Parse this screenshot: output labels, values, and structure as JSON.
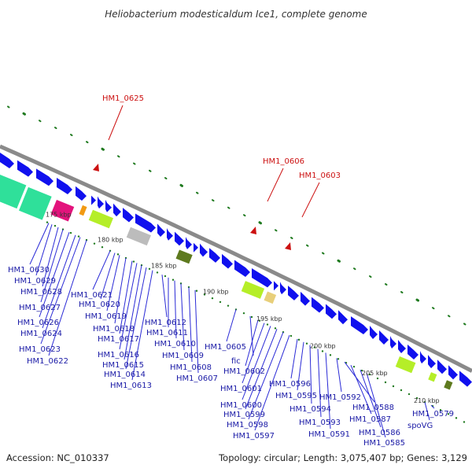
{
  "title": "Heliobacterium modesticaldum Ice1, complete genome",
  "footer": {
    "accession": "Accession: NC_010337",
    "summary": "Topology: circular; Length: 3,075,407 bp; Genes: 3,129"
  },
  "colors": {
    "backbone": "#8a8a8a",
    "gene": "#1010ee",
    "highlight_label": "#cc1111",
    "gene_label": "#1a1aa6",
    "tick_green": "#1f7a1f"
  },
  "tick_labels": [
    "175 kbp",
    "180 kbp",
    "185 kbp",
    "190 kbp",
    "195 kbp",
    "200 kbp",
    "205 kbp",
    "210 kbp"
  ],
  "highlight_genes": [
    "HM1_0625",
    "HM1_0606",
    "HM1_0603"
  ],
  "gene_labels": [
    "HM1_0630",
    "HM1_0629",
    "HM1_0628",
    "HM1_0627",
    "HM1_0626",
    "HM1_0624",
    "HM1_0623",
    "HM1_0622",
    "HM1_0621",
    "HM1_0620",
    "HM1_0619",
    "HM1_0618",
    "HM1_0617",
    "HM1_0616",
    "HM1_0615",
    "HM1_0614",
    "HM1_0613",
    "HM1_0612",
    "HM1_0611",
    "HM1_0610",
    "HM1_0609",
    "HM1_0608",
    "HM1_0607",
    "HM1_0605",
    "fic",
    "HM1_0602",
    "HM1_0601",
    "HM1_0600",
    "HM1_0599",
    "HM1_0598",
    "HM1_0597",
    "HM1_0596",
    "HM1_0595",
    "HM1_0594",
    "HM1_0593",
    "HM1_0591",
    "HM1_0592",
    "HM1_0588",
    "HM1_0587",
    "HM1_0586",
    "HM1_0585",
    "HM1_0579",
    "spoVG"
  ]
}
